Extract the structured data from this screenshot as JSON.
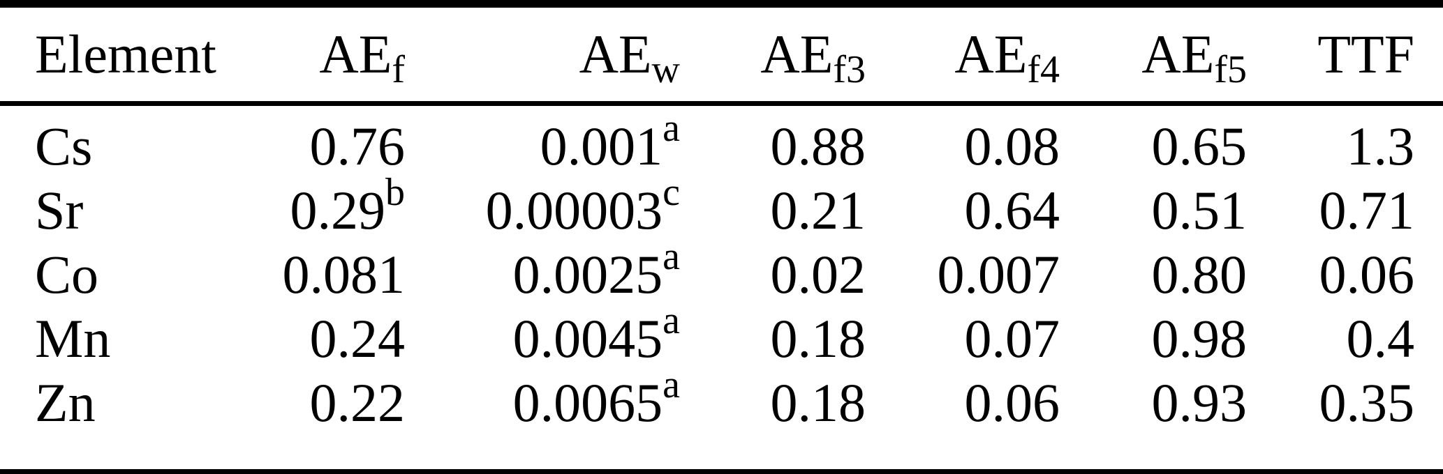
{
  "table": {
    "colors": {
      "text": "#000000",
      "background": "#ffffff",
      "rule": "#000000"
    },
    "columns": [
      {
        "label": "Element",
        "sub": ""
      },
      {
        "label": "AE",
        "sub": "f"
      },
      {
        "label": "AE",
        "sub": "w"
      },
      {
        "label": "AE",
        "sub": "f3"
      },
      {
        "label": "AE",
        "sub": "f4"
      },
      {
        "label": "AE",
        "sub": "f5"
      },
      {
        "label": "TTF",
        "sub": ""
      }
    ],
    "rows": [
      {
        "element": "Cs",
        "cells": [
          {
            "v": "0.76",
            "sup": ""
          },
          {
            "v": "0.001",
            "sup": "a"
          },
          {
            "v": "0.88",
            "sup": ""
          },
          {
            "v": "0.08",
            "sup": ""
          },
          {
            "v": "0.65",
            "sup": ""
          },
          {
            "v": "1.3",
            "sup": ""
          }
        ]
      },
      {
        "element": "Sr",
        "cells": [
          {
            "v": "0.29",
            "sup": "b"
          },
          {
            "v": "0.00003",
            "sup": "c"
          },
          {
            "v": "0.21",
            "sup": ""
          },
          {
            "v": "0.64",
            "sup": ""
          },
          {
            "v": "0.51",
            "sup": ""
          },
          {
            "v": "0.71",
            "sup": ""
          }
        ]
      },
      {
        "element": "Co",
        "cells": [
          {
            "v": "0.081",
            "sup": ""
          },
          {
            "v": "0.0025",
            "sup": "a"
          },
          {
            "v": "0.02",
            "sup": ""
          },
          {
            "v": "0.007",
            "sup": ""
          },
          {
            "v": "0.80",
            "sup": ""
          },
          {
            "v": "0.06",
            "sup": ""
          }
        ]
      },
      {
        "element": "Mn",
        "cells": [
          {
            "v": "0.24",
            "sup": ""
          },
          {
            "v": "0.0045",
            "sup": "a"
          },
          {
            "v": "0.18",
            "sup": ""
          },
          {
            "v": "0.07",
            "sup": ""
          },
          {
            "v": "0.98",
            "sup": ""
          },
          {
            "v": "0.4",
            "sup": ""
          }
        ]
      },
      {
        "element": "Zn",
        "cells": [
          {
            "v": "0.22",
            "sup": ""
          },
          {
            "v": "0.0065",
            "sup": "a"
          },
          {
            "v": "0.18",
            "sup": ""
          },
          {
            "v": "0.06",
            "sup": ""
          },
          {
            "v": "0.93",
            "sup": ""
          },
          {
            "v": "0.35",
            "sup": ""
          }
        ]
      }
    ]
  },
  "chart_data": {
    "type": "table",
    "columns": [
      "Element",
      "AE_f",
      "AE_w",
      "AE_f3",
      "AE_f4",
      "AE_f5",
      "TTF"
    ],
    "rows": [
      [
        "Cs",
        "0.76",
        "0.001^a",
        "0.88",
        "0.08",
        "0.65",
        "1.3"
      ],
      [
        "Sr",
        "0.29^b",
        "0.00003^c",
        "0.21",
        "0.64",
        "0.51",
        "0.71"
      ],
      [
        "Co",
        "0.081",
        "0.0025^a",
        "0.02",
        "0.007",
        "0.80",
        "0.06"
      ],
      [
        "Mn",
        "0.24",
        "0.0045^a",
        "0.18",
        "0.07",
        "0.98",
        "0.4"
      ],
      [
        "Zn",
        "0.22",
        "0.0065^a",
        "0.18",
        "0.06",
        "0.93",
        "0.35"
      ]
    ]
  }
}
